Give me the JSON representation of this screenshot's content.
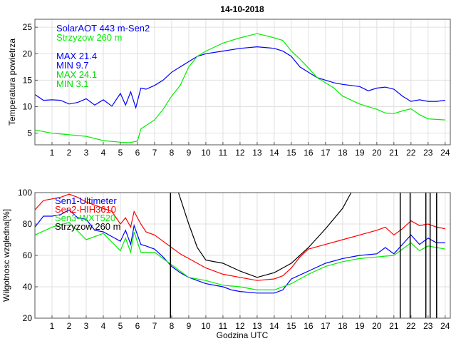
{
  "chart_data": [
    {
      "type": "line",
      "title": "14-10-2018",
      "xlabel": "",
      "ylabel": "Temperatura powietrza",
      "xlim": [
        0,
        24.3
      ],
      "ylim": [
        2.8,
        26.5
      ],
      "xticks": [
        1,
        2,
        3,
        4,
        5,
        6,
        7,
        8,
        9,
        10,
        11,
        12,
        13,
        14,
        15,
        16,
        17,
        18,
        19,
        20,
        21,
        22,
        23,
        24
      ],
      "yticks": [
        5,
        10,
        15,
        20,
        25
      ],
      "grid": true,
      "legend": [
        "SolarAOT 443 m-Sen2",
        "Strzyzow 260 m"
      ],
      "annotations": [
        {
          "text": "MAX 21.4",
          "color": "#0000ff"
        },
        {
          "text": "MIN 9.7",
          "color": "#0000ff"
        },
        {
          "text": "MAX 24.1",
          "color": "#00dd00"
        },
        {
          "text": "MIN 3.1",
          "color": "#00dd00"
        }
      ],
      "series": [
        {
          "name": "SolarAOT 443 m-Sen2",
          "color": "#0000ff",
          "x": [
            0,
            0.5,
            1,
            1.5,
            2,
            2.5,
            3,
            3.5,
            4,
            4.5,
            5,
            5.3,
            5.6,
            5.9,
            6.2,
            6.5,
            7,
            7.5,
            8,
            8.5,
            9,
            9.5,
            10,
            11,
            12,
            13,
            14,
            14.5,
            15,
            15.5,
            16,
            16.5,
            17,
            17.5,
            18,
            19,
            19.5,
            20,
            20.5,
            21,
            21.5,
            22,
            22.5,
            23,
            23.5,
            24
          ],
          "y": [
            12.3,
            11.2,
            11.3,
            11.2,
            10.5,
            10.8,
            11.5,
            10.3,
            11.3,
            10.1,
            12.5,
            10.3,
            12.8,
            9.8,
            13.5,
            13.3,
            14,
            15,
            16.5,
            17.5,
            18.5,
            19.5,
            20,
            20.5,
            21,
            21.3,
            21,
            20.5,
            19.5,
            17.5,
            16.5,
            15.5,
            15,
            14.5,
            14.2,
            13.8,
            13,
            13.5,
            13.7,
            13.3,
            12,
            11,
            11.3,
            11,
            11,
            11.2
          ]
        },
        {
          "name": "Strzyzow 260 m",
          "color": "#00ee00",
          "x": [
            0,
            1,
            2,
            3,
            4,
            5,
            5.5,
            6,
            6.2,
            7,
            7.5,
            8,
            8.5,
            9,
            9.5,
            10,
            11,
            12,
            13,
            14,
            14.5,
            15,
            15.5,
            16,
            16.5,
            17,
            17.5,
            18,
            19,
            20,
            20.5,
            21,
            21.5,
            22,
            22.5,
            23,
            24
          ],
          "y": [
            5.6,
            5,
            4.7,
            4.4,
            3.6,
            3.3,
            3.2,
            3.5,
            5.8,
            7.5,
            9.5,
            12,
            14,
            17.5,
            19.5,
            20.5,
            22,
            23,
            23.8,
            23,
            22.5,
            20.5,
            19,
            17.3,
            15.5,
            14.5,
            13.5,
            12,
            10.5,
            9.5,
            8.8,
            8.7,
            9.2,
            9.6,
            8.5,
            7.7,
            7.5
          ]
        }
      ]
    },
    {
      "type": "line",
      "title": "",
      "xlabel": "Godzina UTC",
      "ylabel": "Wilgotnosc wzgledna[%]",
      "xlim": [
        0,
        24.3
      ],
      "ylim": [
        20,
        100
      ],
      "xticks": [
        1,
        2,
        3,
        4,
        5,
        6,
        7,
        8,
        9,
        10,
        11,
        12,
        13,
        14,
        15,
        16,
        17,
        18,
        19,
        20,
        21,
        22,
        23,
        24
      ],
      "yticks": [
        20,
        40,
        60,
        80,
        100
      ],
      "grid": true,
      "legend": [
        "Sen1-Ultimeter",
        "Sen2-HIH3610",
        "Sen3-WXT520",
        "Strzyzow 260 m"
      ],
      "vertical_lines_hours": [
        7.93,
        21.37,
        21.95,
        22.87,
        23.12,
        23.5
      ],
      "series": [
        {
          "name": "Sen2-HIH3610",
          "color": "#ff0000",
          "x": [
            0,
            0.5,
            1,
            1.5,
            2,
            2.5,
            3,
            3.5,
            4,
            4.5,
            5,
            5.3,
            5.6,
            5.8,
            6.2,
            6.5,
            7,
            7.5,
            8,
            8.5,
            9,
            9.5,
            10,
            11,
            12,
            13,
            14,
            14.5,
            15,
            15.5,
            16,
            17,
            18,
            19,
            20,
            20.5,
            21,
            21.5,
            22,
            22.5,
            23,
            23.5,
            24
          ],
          "y": [
            89,
            95,
            96,
            97,
            99,
            97,
            94,
            92,
            90,
            88,
            80,
            84,
            78,
            88,
            80,
            75,
            73,
            69,
            65,
            61,
            58,
            55,
            52,
            48,
            46,
            44,
            45,
            47,
            52,
            59,
            64,
            67,
            70,
            73,
            76,
            78,
            73,
            77,
            82,
            79,
            80,
            78,
            77
          ]
        },
        {
          "name": "Sen1-Ultimeter",
          "color": "#0000ff",
          "x": [
            0,
            0.5,
            1,
            1.5,
            2,
            2.5,
            3,
            3.5,
            4,
            4.5,
            5,
            5.3,
            5.6,
            5.8,
            6.2,
            6.5,
            7,
            7.5,
            8,
            8.5,
            9,
            9.5,
            10,
            11,
            11.5,
            12,
            13,
            14,
            14.5,
            15,
            16,
            17,
            18,
            19,
            20,
            20.5,
            21,
            21.5,
            22,
            22.5,
            23,
            23.5,
            24
          ],
          "y": [
            78,
            85,
            85,
            86,
            89,
            84,
            83,
            76,
            75,
            72,
            69,
            76,
            67,
            79,
            67,
            66,
            64,
            59,
            53,
            49,
            46,
            44,
            42,
            40,
            38,
            37,
            36,
            36,
            38,
            45,
            50,
            55,
            58,
            60,
            61,
            65,
            61,
            67,
            73,
            67,
            71,
            68,
            68
          ]
        },
        {
          "name": "Sen3-WXT520",
          "color": "#00ee00",
          "x": [
            0,
            1,
            2,
            3,
            4,
            5,
            5.3,
            5.6,
            5.8,
            6.2,
            7,
            8,
            9,
            10,
            11,
            12,
            13,
            14,
            15,
            16,
            17,
            18,
            19,
            20,
            21,
            22,
            22.5,
            23,
            24
          ],
          "y": [
            73,
            78,
            81,
            70,
            74,
            63,
            71,
            62,
            75,
            62,
            62,
            54,
            46,
            44,
            41,
            40,
            38,
            38,
            42,
            48,
            53,
            56,
            58,
            59,
            60,
            68,
            63,
            66,
            64
          ]
        },
        {
          "name": "Strzyzow 260 m",
          "color": "#000000",
          "x": [
            8.4,
            9,
            9.5,
            10,
            11,
            12,
            13,
            14,
            14.5,
            15,
            16,
            17,
            18,
            18.5
          ],
          "y": [
            100,
            80,
            65,
            57,
            55,
            50,
            46,
            49,
            52,
            55,
            65,
            77,
            90,
            100
          ]
        }
      ]
    }
  ]
}
